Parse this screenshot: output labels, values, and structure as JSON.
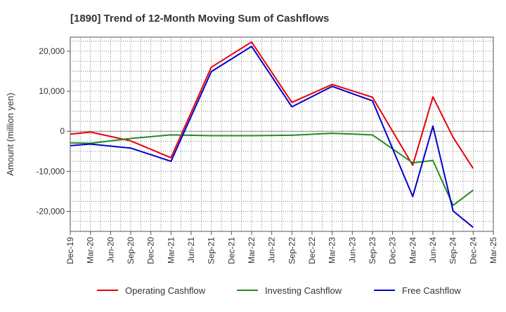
{
  "chart_data": {
    "type": "line",
    "title": "[1890]  Trend of 12-Month Moving Sum of Cashflows",
    "xlabel": "",
    "ylabel": "Amount (million yen)",
    "ylim": [
      -25000,
      23500
    ],
    "yticks": [
      20000,
      10000,
      0,
      -10000,
      -20000
    ],
    "ytick_labels": [
      "20,000",
      "10,000",
      "0",
      "-10,000",
      "-20,000"
    ],
    "x": [
      "Dec-19",
      "Mar-20",
      "Jun-20",
      "Sep-20",
      "Dec-20",
      "Mar-21",
      "Jun-21",
      "Sep-21",
      "Dec-21",
      "Mar-22",
      "Jun-22",
      "Sep-22",
      "Dec-22",
      "Mar-23",
      "Jun-23",
      "Sep-23",
      "Dec-23",
      "Mar-24",
      "Jun-24",
      "Sep-24",
      "Dec-24",
      "Mar-25"
    ],
    "grid": true,
    "legend_position": "bottom",
    "series": [
      {
        "name": "Operating Cashflow",
        "color": "#e8000b",
        "values": [
          -700,
          -200,
          null,
          -2400,
          null,
          -6600,
          null,
          16000,
          null,
          22300,
          null,
          7200,
          null,
          11700,
          null,
          8500,
          null,
          -8500,
          8600,
          -1500,
          -9300,
          null
        ]
      },
      {
        "name": "Investing Cashflow",
        "color": "#228b22",
        "values": [
          -2900,
          -3000,
          null,
          -1800,
          null,
          -900,
          null,
          -1100,
          null,
          -1100,
          null,
          -1000,
          null,
          -500,
          null,
          -900,
          null,
          -7900,
          -7300,
          -18500,
          -14700,
          null
        ]
      },
      {
        "name": "Free Cashflow",
        "color": "#0000cd",
        "values": [
          -3600,
          -3200,
          null,
          -4200,
          null,
          -7500,
          null,
          14900,
          null,
          21200,
          null,
          6100,
          null,
          11200,
          null,
          7600,
          null,
          -16300,
          1300,
          -19900,
          -24000,
          null
        ]
      }
    ]
  }
}
